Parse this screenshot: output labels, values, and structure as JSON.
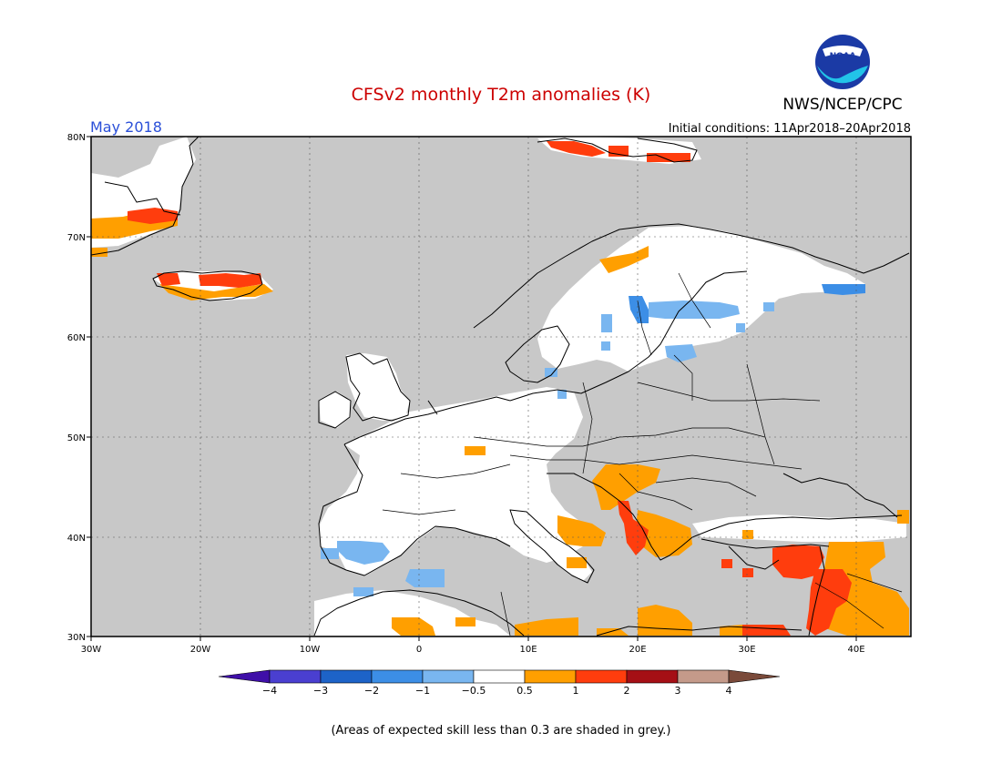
{
  "header": {
    "title": "CFSv2 monthly T2m anomalies (K)",
    "org": "NWS/NCEP/CPC",
    "logo_text": "NOAA",
    "month": "May 2018",
    "initial_conditions": "Initial conditions: 11Apr2018–20Apr2018"
  },
  "axes": {
    "lat_labels": [
      "80N",
      "70N",
      "60N",
      "50N",
      "40N",
      "30N"
    ],
    "lon_labels": [
      "30W",
      "20W",
      "10W",
      "0",
      "10E",
      "20E",
      "30E",
      "40E"
    ]
  },
  "colorbar": {
    "labels": [
      "−4",
      "−3",
      "−2",
      "−1",
      "−0.5",
      "0.5",
      "1",
      "2",
      "3",
      "4"
    ],
    "colors": [
      "#3f0fa8",
      "#4a3fd0",
      "#1d63c8",
      "#3c8ee6",
      "#79b6f0",
      "#ffffff",
      "#ff9f00",
      "#ff3d0d",
      "#a50f15",
      "#c49a8a",
      "#7a4a3a"
    ]
  },
  "map_colors": {
    "skill_mask": "#c8c8c8",
    "neutral": "#ffffff",
    "warm_0_5": "#ff9f00",
    "warm_1": "#ff3d0d",
    "cool_0_5": "#79b6f0",
    "cool_1": "#3c8ee6"
  },
  "footer": {
    "note": "(Areas of expected skill less than 0.3 are shaded in grey.)"
  }
}
